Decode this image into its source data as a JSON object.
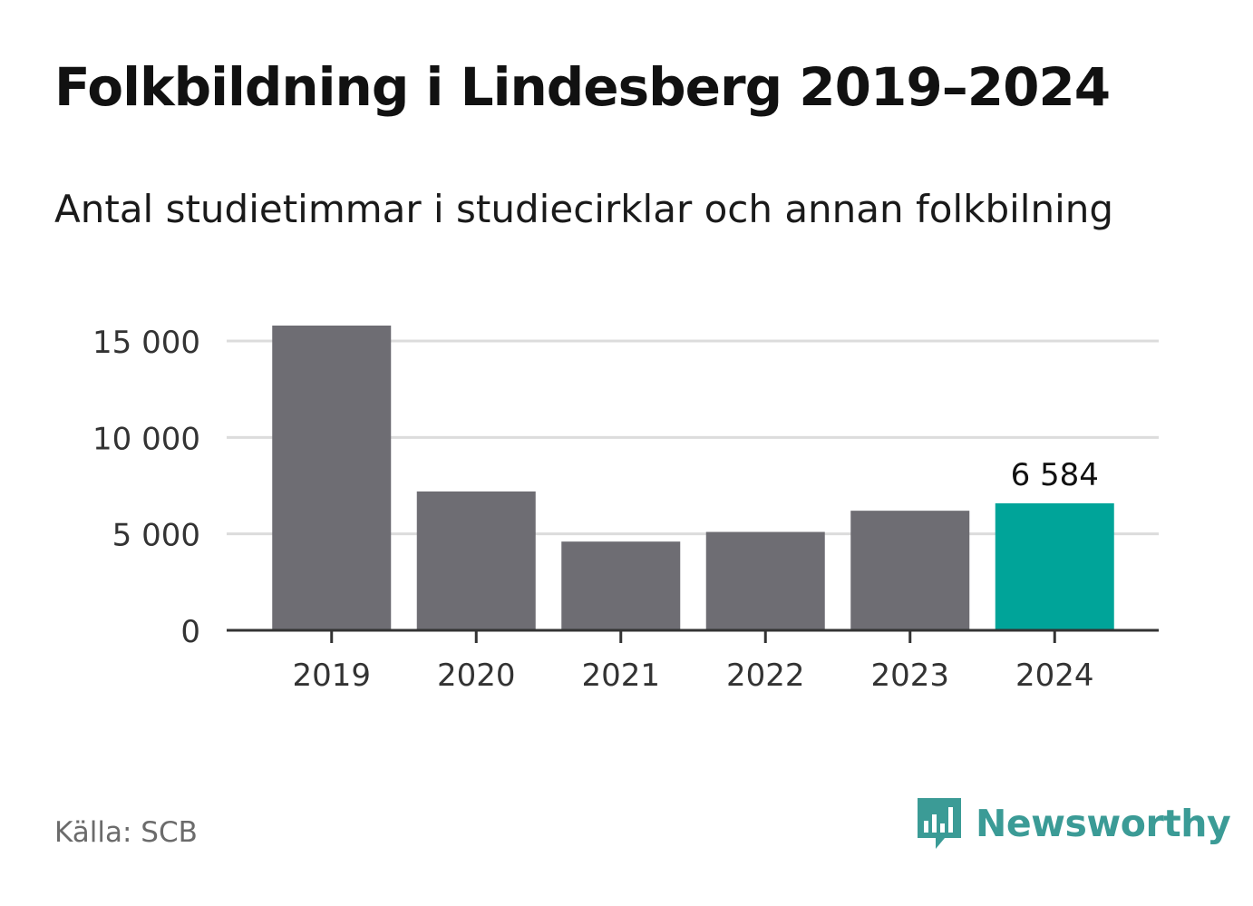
{
  "header": {
    "title": "Folkbildning i Lindesberg 2019–2024",
    "subtitle": "Antal studietimmar i studiecirklar och annan folkbilning"
  },
  "footer": {
    "source": "Källa: SCB",
    "brand": "Newsworthy",
    "brand_icon": "bar-chart-speech-bubble-icon"
  },
  "colors": {
    "bar": "#6e6d73",
    "highlight": "#00a499",
    "grid": "#dcdcdc",
    "axis": "#333333",
    "brand": "#3b9b96"
  },
  "chart_data": {
    "type": "bar",
    "categories": [
      "2019",
      "2020",
      "2021",
      "2022",
      "2023",
      "2024"
    ],
    "values": [
      15800,
      7200,
      4600,
      5100,
      6200,
      6584
    ],
    "highlight_index": 5,
    "data_labels": [
      {
        "index": 5,
        "text": "6 584"
      }
    ],
    "yticks": [
      {
        "value": 0,
        "label": "0"
      },
      {
        "value": 5000,
        "label": "5 000"
      },
      {
        "value": 10000,
        "label": "10 000"
      },
      {
        "value": 15000,
        "label": "15 000"
      }
    ],
    "ylim": [
      0,
      15800
    ],
    "grid": true,
    "legend": "none"
  }
}
